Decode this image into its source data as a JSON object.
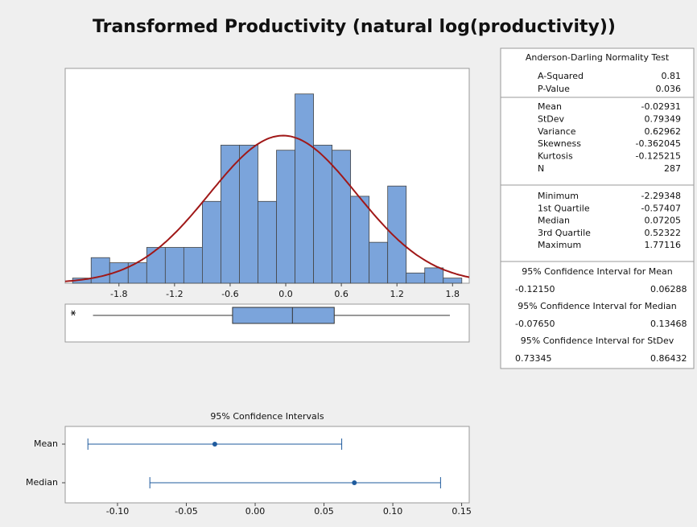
{
  "title": "Transformed Productivity (natural log(productivity))",
  "chart_data": [
    {
      "type": "histogram",
      "bins": [
        -2.3,
        -2.1,
        -1.9,
        -1.7,
        -1.5,
        -1.3,
        -1.1,
        -0.9,
        -0.7,
        -0.5,
        -0.3,
        -0.1,
        0.1,
        0.3,
        0.5,
        0.7,
        0.9,
        1.1,
        1.3,
        1.5,
        1.7,
        1.9
      ],
      "values": [
        1,
        5,
        4,
        4,
        7,
        7,
        7,
        16,
        27,
        27,
        16,
        26,
        37,
        27,
        26,
        17,
        8,
        19,
        2,
        3,
        1
      ],
      "xlim": [
        -2.38,
        1.98
      ],
      "ylim": [
        0,
        42
      ],
      "xticks": [
        -1.8,
        -1.2,
        -0.6,
        {
          "value": 0,
          "label": "0.0"
        },
        0.6,
        1.2,
        1.8
      ],
      "color": "#7ba4db",
      "curve_color": "#a01818"
    },
    {
      "type": "boxplot",
      "whisker_low": -2.08,
      "color": "#7ba4db"
    },
    {
      "type": "interval",
      "title": "95% Confidence Intervals",
      "categories": [
        "Mean",
        "Median"
      ],
      "xlim": [
        -0.138,
        0.1555
      ],
      "xticks": [
        {
          "value": -0.1,
          "label": "-0.10"
        },
        -0.05,
        {
          "value": 0,
          "label": "0.00"
        },
        0.05,
        {
          "value": 0.1,
          "label": "0.10"
        },
        0.15
      ],
      "color": "#1f5b9e"
    }
  ],
  "summary": {
    "normality": {
      "title": "Anderson-Darling Normality Test",
      "rows": [
        {
          "label": "A-Squared",
          "value": 0.81
        },
        {
          "label": "P-Value",
          "value": 0.036
        }
      ]
    },
    "stats": [
      {
        "label": "Mean",
        "value": -0.02931
      },
      {
        "label": "StDev",
        "value": 0.79349
      },
      {
        "label": "Variance",
        "value": 0.62962
      },
      {
        "label": "Skewness",
        "value": -0.362045
      },
      {
        "label": "Kurtosis",
        "value": -0.125215
      },
      {
        "label": "N",
        "value": 287
      }
    ],
    "quantiles": [
      {
        "label": "Minimum",
        "value": -2.29348
      },
      {
        "label": "1st Quartile",
        "value": -0.57407
      },
      {
        "label": "Median",
        "value": 0.07205
      },
      {
        "label": "3rd Quartile",
        "value": 0.52322
      },
      {
        "label": "Maximum",
        "value": 1.77116
      }
    ],
    "intervals": [
      {
        "title": "95% Confidence Interval for Mean",
        "low": {
          "value": -0.1215,
          "label": "-0.12150"
        },
        "high": 0.06288
      },
      {
        "title": "95% Confidence Interval for Median",
        "low": {
          "value": -0.0765,
          "label": "-0.07650"
        },
        "high": 0.13468
      },
      {
        "title": "95% Confidence Interval for StDev",
        "low": 0.73345,
        "high": 0.86432
      }
    ]
  }
}
